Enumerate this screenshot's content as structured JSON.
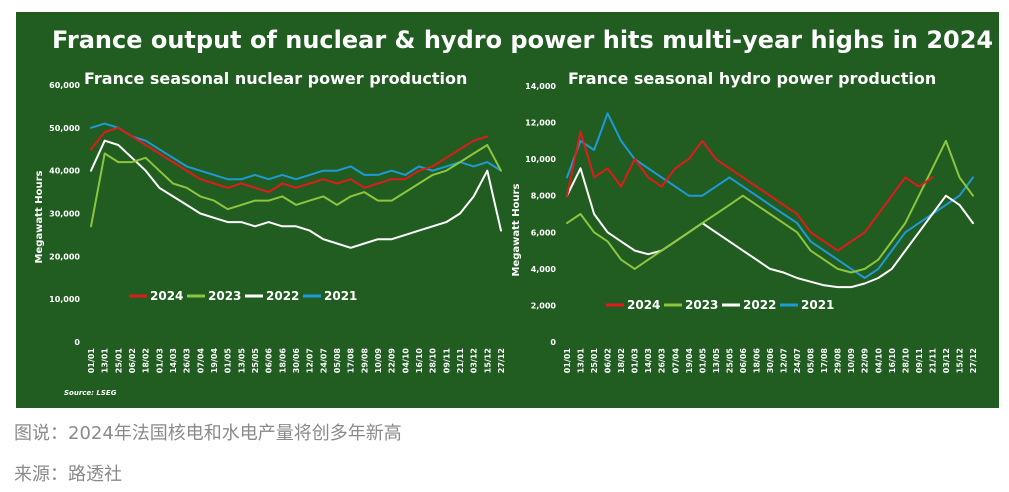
{
  "figure": {
    "title": "France output of nuclear & hydro power hits multi-year highs in 2024",
    "source_note": "Source: LSEG",
    "background": "#215c21",
    "text_color": "#ffffff"
  },
  "captions": {
    "caption": "图说：2024年法国核电和水电产量将创多年新高",
    "source": "来源：路透社"
  },
  "series_colors": {
    "2024": "#e01b1b",
    "2023": "#8cc63f",
    "2022": "#ffffff",
    "2021": "#1e9ad6"
  },
  "chart_data": [
    {
      "type": "line",
      "title": "France seasonal nuclear power production",
      "ylabel": "Megawatt Hours",
      "xlabel": "",
      "ylim": [
        0,
        60000
      ],
      "yticks": [
        "0",
        "10,000",
        "20,000",
        "30,000",
        "40,000",
        "50,000",
        "60,000"
      ],
      "x_tick_labels": [
        "01/01",
        "13/01",
        "25/01",
        "06/02",
        "18/02",
        "01/03",
        "14/03",
        "26/03",
        "07/04",
        "19/04",
        "01/05",
        "13/05",
        "25/05",
        "06/06",
        "18/06",
        "30/06",
        "12/07",
        "24/07",
        "05/08",
        "17/08",
        "29/08",
        "10/09",
        "22/09",
        "04/10",
        "16/10",
        "28/10",
        "09/11",
        "21/11",
        "03/12",
        "15/12",
        "27/12"
      ],
      "legend": [
        "2024",
        "2023",
        "2022",
        "2021"
      ],
      "series": [
        {
          "name": "2024",
          "values": [
            45000,
            49000,
            50000,
            48000,
            46000,
            44000,
            42000,
            40000,
            38000,
            37000,
            36000,
            37000,
            36000,
            35000,
            37000,
            36000,
            37000,
            38000,
            37000,
            38000,
            36000,
            37000,
            38000,
            38000,
            40000,
            41000,
            43000,
            45000,
            47000,
            48000,
            null
          ]
        },
        {
          "name": "2023",
          "values": [
            27000,
            44000,
            42000,
            42000,
            43000,
            40000,
            37000,
            36000,
            34000,
            33000,
            31000,
            32000,
            33000,
            33000,
            34000,
            32000,
            33000,
            34000,
            32000,
            34000,
            35000,
            33000,
            33000,
            35000,
            37000,
            39000,
            40000,
            42000,
            44000,
            46000,
            40000
          ]
        },
        {
          "name": "2022",
          "values": [
            40000,
            47000,
            46000,
            43000,
            40000,
            36000,
            34000,
            32000,
            30000,
            29000,
            28000,
            28000,
            27000,
            28000,
            27000,
            27000,
            26000,
            24000,
            23000,
            22000,
            23000,
            24000,
            24000,
            25000,
            26000,
            27000,
            28000,
            30000,
            34000,
            40000,
            26000
          ]
        },
        {
          "name": "2021",
          "values": [
            50000,
            51000,
            50000,
            48000,
            47000,
            45000,
            43000,
            41000,
            40000,
            39000,
            38000,
            38000,
            39000,
            38000,
            39000,
            38000,
            39000,
            40000,
            40000,
            41000,
            39000,
            39000,
            40000,
            39000,
            41000,
            40000,
            41000,
            42000,
            41000,
            42000,
            40000
          ]
        }
      ]
    },
    {
      "type": "line",
      "title": "France seasonal hydro power production",
      "ylabel": "Megawatt Hours",
      "xlabel": "",
      "ylim": [
        0,
        14000
      ],
      "yticks": [
        "0",
        "2,000",
        "4,000",
        "6,000",
        "8,000",
        "10,000",
        "12,000",
        "14,000"
      ],
      "x_tick_labels": [
        "01/01",
        "13/01",
        "25/01",
        "06/02",
        "18/02",
        "01/03",
        "14/03",
        "26/03",
        "07/04",
        "19/04",
        "01/05",
        "13/05",
        "25/05",
        "06/06",
        "18/06",
        "30/06",
        "12/07",
        "24/07",
        "05/08",
        "17/08",
        "29/08",
        "10/09",
        "22/09",
        "04/10",
        "16/10",
        "28/10",
        "09/11",
        "21/11",
        "03/12",
        "15/12",
        "27/12"
      ],
      "legend": [
        "2024",
        "2023",
        "2022",
        "2021"
      ],
      "series": [
        {
          "name": "2024",
          "values": [
            8000,
            11500,
            9000,
            9500,
            8500,
            10000,
            9000,
            8500,
            9500,
            10000,
            11000,
            10000,
            9500,
            9000,
            8500,
            8000,
            7500,
            7000,
            6000,
            5500,
            5000,
            5500,
            6000,
            7000,
            8000,
            9000,
            8500,
            9000,
            null,
            null,
            null
          ]
        },
        {
          "name": "2023",
          "values": [
            6500,
            7000,
            6000,
            5500,
            4500,
            4000,
            4500,
            5000,
            5500,
            6000,
            6500,
            7000,
            7500,
            8000,
            7500,
            7000,
            6500,
            6000,
            5000,
            4500,
            4000,
            3800,
            4000,
            4500,
            5500,
            6500,
            8000,
            9500,
            11000,
            9000,
            8000
          ]
        },
        {
          "name": "2022",
          "values": [
            8000,
            9500,
            7000,
            6000,
            5500,
            5000,
            4800,
            5000,
            5500,
            6000,
            6500,
            6000,
            5500,
            5000,
            4500,
            4000,
            3800,
            3500,
            3300,
            3100,
            3000,
            3000,
            3200,
            3500,
            4000,
            5000,
            6000,
            7000,
            8000,
            7500,
            6500
          ]
        },
        {
          "name": "2021",
          "values": [
            9000,
            11000,
            10500,
            12500,
            11000,
            10000,
            9500,
            9000,
            8500,
            8000,
            8000,
            8500,
            9000,
            8500,
            8000,
            7500,
            7000,
            6500,
            5500,
            5000,
            4500,
            4000,
            3500,
            4000,
            5000,
            6000,
            6500,
            7000,
            7500,
            8000,
            9000
          ]
        }
      ]
    }
  ]
}
